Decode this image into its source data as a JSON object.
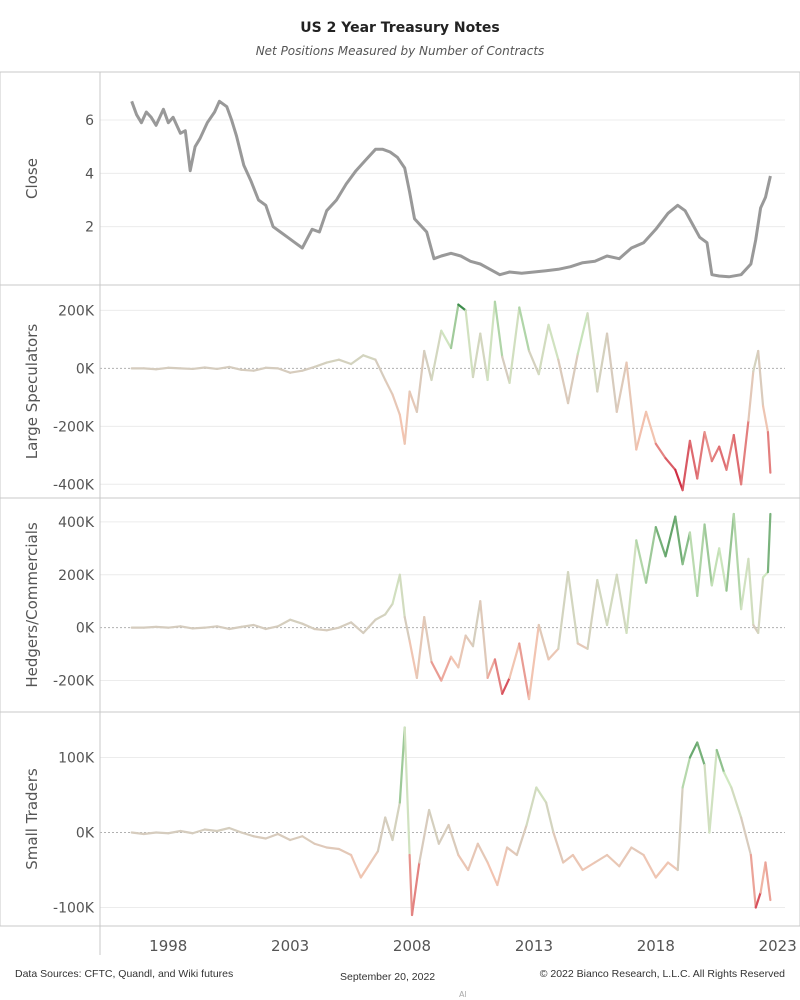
{
  "header": {
    "title": "US 2 Year Treasury Notes",
    "subtitle": "Net Positions Measured by Number of Contracts"
  },
  "footer": {
    "sources": "Data Sources: CFTC, Quandl, and Wiki futures",
    "date": "September 20, 2022",
    "copyright": "© 2022 Bianco Research, L.L.C. All Rights Reserved",
    "mark": "Al"
  },
  "chart_data": [
    {
      "type": "line",
      "ylabel": "Close",
      "color": "#999999",
      "xlim": [
        1995.2,
        2023.3
      ],
      "ylim": [
        0,
        7.5
      ],
      "yticks": [
        2,
        4,
        6
      ],
      "ytick_labels": [
        "2",
        "4",
        "6"
      ],
      "x": [
        1996.5,
        1996.7,
        1996.9,
        1997.1,
        1997.3,
        1997.5,
        1997.8,
        1998.0,
        1998.2,
        1998.5,
        1998.7,
        1998.9,
        1999.1,
        1999.3,
        1999.6,
        1999.9,
        2000.1,
        2000.4,
        2000.6,
        2000.8,
        2001.1,
        2001.4,
        2001.7,
        2002.0,
        2002.3,
        2002.6,
        2002.9,
        2003.2,
        2003.5,
        2003.9,
        2004.2,
        2004.5,
        2004.9,
        2005.3,
        2005.7,
        2006.1,
        2006.5,
        2006.8,
        2007.1,
        2007.4,
        2007.7,
        2007.9,
        2008.1,
        2008.3,
        2008.6,
        2008.9,
        2009.2,
        2009.6,
        2010.0,
        2010.4,
        2010.8,
        2011.2,
        2011.6,
        2012.0,
        2012.5,
        2013.0,
        2013.5,
        2014.0,
        2014.5,
        2015.0,
        2015.5,
        2016.0,
        2016.5,
        2017.0,
        2017.5,
        2018.0,
        2018.5,
        2018.9,
        2019.2,
        2019.5,
        2019.8,
        2020.1,
        2020.3,
        2020.6,
        2021.0,
        2021.5,
        2021.9,
        2022.1,
        2022.3,
        2022.5,
        2022.7
      ],
      "y": [
        6.7,
        6.2,
        5.9,
        6.3,
        6.1,
        5.8,
        6.4,
        5.9,
        6.1,
        5.5,
        5.6,
        4.1,
        5.0,
        5.3,
        5.9,
        6.3,
        6.7,
        6.5,
        6.0,
        5.4,
        4.3,
        3.7,
        3.0,
        2.8,
        2.0,
        1.8,
        1.6,
        1.4,
        1.2,
        1.9,
        1.8,
        2.6,
        3.0,
        3.6,
        4.1,
        4.5,
        4.9,
        4.9,
        4.8,
        4.6,
        4.2,
        3.3,
        2.3,
        2.1,
        1.8,
        0.8,
        0.9,
        1.0,
        0.9,
        0.7,
        0.6,
        0.4,
        0.2,
        0.3,
        0.25,
        0.3,
        0.35,
        0.4,
        0.5,
        0.65,
        0.7,
        0.9,
        0.8,
        1.2,
        1.4,
        1.9,
        2.5,
        2.8,
        2.6,
        2.1,
        1.6,
        1.4,
        0.2,
        0.15,
        0.12,
        0.2,
        0.6,
        1.5,
        2.7,
        3.1,
        3.9
      ]
    },
    {
      "type": "line",
      "ylabel": "Large Speculators",
      "xlim": [
        1995.2,
        2023.3
      ],
      "ylim": [
        -430000,
        260000
      ],
      "yticks": [
        -400000,
        -200000,
        0,
        200000
      ],
      "ytick_labels": [
        "-400K",
        "-200K",
        "0K",
        "200K"
      ],
      "x": [
        1996.5,
        1997.0,
        1997.5,
        1998.0,
        1998.5,
        1999.0,
        1999.5,
        2000.0,
        2000.5,
        2001.0,
        2001.5,
        2002.0,
        2002.5,
        2003.0,
        2003.5,
        2004.0,
        2004.5,
        2005.0,
        2005.5,
        2006.0,
        2006.5,
        2006.9,
        2007.2,
        2007.5,
        2007.7,
        2007.9,
        2008.2,
        2008.5,
        2008.8,
        2009.2,
        2009.6,
        2009.9,
        2010.2,
        2010.5,
        2010.8,
        2011.1,
        2011.4,
        2011.7,
        2012.0,
        2012.4,
        2012.8,
        2013.2,
        2013.6,
        2014.0,
        2014.4,
        2014.8,
        2015.2,
        2015.6,
        2016.0,
        2016.4,
        2016.8,
        2017.2,
        2017.6,
        2018.0,
        2018.4,
        2018.8,
        2019.1,
        2019.4,
        2019.7,
        2020.0,
        2020.3,
        2020.6,
        2020.9,
        2021.2,
        2021.5,
        2021.8,
        2022.0,
        2022.2,
        2022.4,
        2022.6,
        2022.7
      ],
      "y": [
        0,
        0,
        -3000,
        2000,
        0,
        -2000,
        3000,
        -2000,
        5000,
        -5000,
        -8000,
        2000,
        0,
        -15000,
        -8000,
        5000,
        20000,
        30000,
        15000,
        45000,
        30000,
        -40000,
        -90000,
        -160000,
        -260000,
        -80000,
        -150000,
        60000,
        -40000,
        130000,
        70000,
        220000,
        200000,
        -30000,
        120000,
        -40000,
        230000,
        40000,
        -50000,
        210000,
        60000,
        -20000,
        150000,
        30000,
        -120000,
        50000,
        190000,
        -80000,
        120000,
        -150000,
        20000,
        -280000,
        -150000,
        -260000,
        -310000,
        -350000,
        -420000,
        -250000,
        -380000,
        -220000,
        -320000,
        -270000,
        -350000,
        -230000,
        -400000,
        -180000,
        -10000,
        60000,
        -130000,
        -220000,
        -360000
      ]
    },
    {
      "type": "line",
      "ylabel": "Hedgers/Commercials",
      "xlim": [
        1995.2,
        2023.3
      ],
      "ylim": [
        -300000,
        460000
      ],
      "yticks": [
        -200000,
        0,
        200000,
        400000
      ],
      "ytick_labels": [
        "-200K",
        "0K",
        "200K",
        "400K"
      ],
      "x": [
        1996.5,
        1997.0,
        1997.5,
        1998.0,
        1998.5,
        1999.0,
        1999.5,
        2000.0,
        2000.5,
        2001.0,
        2001.5,
        2002.0,
        2002.5,
        2003.0,
        2003.5,
        2004.0,
        2004.5,
        2005.0,
        2005.5,
        2006.0,
        2006.5,
        2006.9,
        2007.2,
        2007.5,
        2007.7,
        2007.9,
        2008.2,
        2008.5,
        2008.8,
        2009.2,
        2009.6,
        2009.9,
        2010.2,
        2010.5,
        2010.8,
        2011.1,
        2011.4,
        2011.7,
        2012.0,
        2012.4,
        2012.8,
        2013.2,
        2013.6,
        2014.0,
        2014.4,
        2014.8,
        2015.2,
        2015.6,
        2016.0,
        2016.4,
        2016.8,
        2017.2,
        2017.6,
        2018.0,
        2018.4,
        2018.8,
        2019.1,
        2019.4,
        2019.7,
        2020.0,
        2020.3,
        2020.6,
        2020.9,
        2021.2,
        2021.5,
        2021.8,
        2022.0,
        2022.2,
        2022.4,
        2022.6,
        2022.7
      ],
      "y": [
        0,
        0,
        3000,
        0,
        5000,
        -3000,
        0,
        5000,
        -5000,
        3000,
        10000,
        -5000,
        5000,
        30000,
        15000,
        -5000,
        -10000,
        0,
        20000,
        -20000,
        30000,
        50000,
        90000,
        200000,
        40000,
        -50000,
        -190000,
        40000,
        -130000,
        -200000,
        -110000,
        -150000,
        -30000,
        -70000,
        100000,
        -190000,
        -120000,
        -250000,
        -190000,
        -60000,
        -270000,
        10000,
        -120000,
        -80000,
        210000,
        -60000,
        -80000,
        180000,
        10000,
        200000,
        -20000,
        330000,
        170000,
        380000,
        270000,
        420000,
        240000,
        360000,
        120000,
        390000,
        160000,
        300000,
        140000,
        430000,
        70000,
        260000,
        10000,
        -20000,
        190000,
        210000,
        430000
      ]
    },
    {
      "type": "line",
      "ylabel": "Small Traders",
      "xlim": [
        1995.2,
        2023.3
      ],
      "ylim": [
        -118000,
        150000
      ],
      "yticks": [
        -100000,
        0,
        100000
      ],
      "ytick_labels": [
        "-100K",
        "0K",
        "100K"
      ],
      "x": [
        1996.5,
        1997.0,
        1997.5,
        1998.0,
        1998.5,
        1999.0,
        1999.5,
        2000.0,
        2000.5,
        2001.0,
        2001.5,
        2002.0,
        2002.5,
        2003.0,
        2003.5,
        2004.0,
        2004.5,
        2005.0,
        2005.5,
        2005.9,
        2006.3,
        2006.6,
        2006.9,
        2007.2,
        2007.5,
        2007.7,
        2007.9,
        2008.0,
        2008.3,
        2008.7,
        2009.1,
        2009.5,
        2009.9,
        2010.3,
        2010.7,
        2011.1,
        2011.5,
        2011.9,
        2012.3,
        2012.7,
        2013.1,
        2013.5,
        2013.8,
        2014.2,
        2014.6,
        2015.0,
        2015.5,
        2016.0,
        2016.5,
        2017.0,
        2017.5,
        2018.0,
        2018.5,
        2018.9,
        2019.1,
        2019.4,
        2019.7,
        2020.0,
        2020.2,
        2020.5,
        2020.8,
        2021.1,
        2021.5,
        2021.9,
        2022.1,
        2022.3,
        2022.5,
        2022.7
      ],
      "y": [
        0,
        -2000,
        0,
        -1000,
        2000,
        -1000,
        4000,
        2000,
        6000,
        0,
        -5000,
        -8000,
        -2000,
        -10000,
        -5000,
        -15000,
        -20000,
        -22000,
        -30000,
        -60000,
        -40000,
        -25000,
        20000,
        -10000,
        40000,
        140000,
        -30000,
        -110000,
        -40000,
        30000,
        -15000,
        10000,
        -30000,
        -50000,
        -15000,
        -40000,
        -70000,
        -20000,
        -30000,
        10000,
        60000,
        40000,
        0,
        -40000,
        -30000,
        -50000,
        -40000,
        -30000,
        -45000,
        -20000,
        -30000,
        -60000,
        -40000,
        -50000,
        60000,
        100000,
        120000,
        90000,
        0,
        110000,
        80000,
        60000,
        20000,
        -30000,
        -100000,
        -80000,
        -40000,
        -90000
      ]
    }
  ],
  "xaxis": {
    "ticks": [
      1998,
      2003,
      2008,
      2013,
      2018,
      2023
    ],
    "tick_labels": [
      "1998",
      "2003",
      "2008",
      "2013",
      "2018",
      "2023"
    ]
  },
  "colors": {
    "close_line": "#999999",
    "positive_strong": "#1f7a34",
    "positive_light": "#cfe8c0",
    "negative_light": "#f3c4b0",
    "negative_strong": "#c8102e",
    "neutral": "#d5ccbe",
    "grid": "#ececec",
    "panel_border": "#c8c8c8"
  }
}
